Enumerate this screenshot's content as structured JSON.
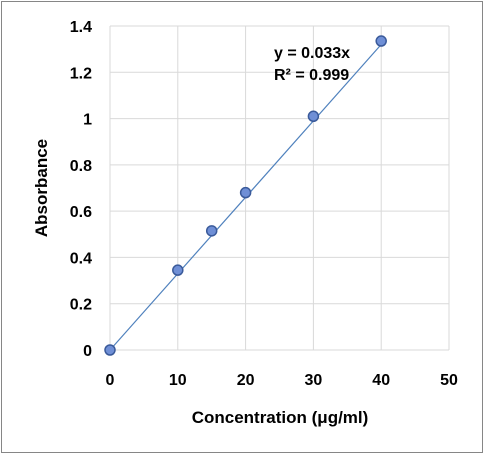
{
  "chart_data": {
    "type": "scatter",
    "title": "",
    "xlabel": "Concentration (μg/ml)",
    "ylabel": "Absorbance",
    "xlim": [
      0,
      50
    ],
    "ylim": [
      0,
      1.4
    ],
    "x_ticks": [
      "0",
      "10",
      "20",
      "30",
      "40",
      "50"
    ],
    "y_ticks": [
      "0",
      "0.2",
      "0.4",
      "0.6",
      "0.8",
      "1",
      "1.2",
      "1.4"
    ],
    "grid": true,
    "legend": "none",
    "series": [
      {
        "x": [
          0,
          10,
          15,
          20,
          30,
          40
        ],
        "y": [
          0,
          0.345,
          0.515,
          0.68,
          1.01,
          1.335
        ],
        "marker_color": "#6f8fd6",
        "marker_edge": "#3a5a9a"
      }
    ],
    "trendline": {
      "slope": 0.033,
      "intercept": 0,
      "color": "#4f81bd",
      "equation_label": "y = 0.033x",
      "r2_label": "R² = 0.999"
    }
  }
}
